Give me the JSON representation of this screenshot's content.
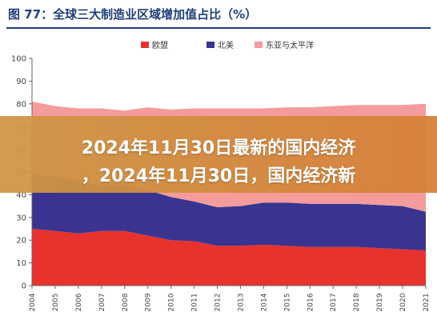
{
  "figure": {
    "title": "图 77：全球三大制造业区域增加值占比（%）"
  },
  "banner": {
    "line1": "2024年11月30日最新的国内经济",
    "line2": "，2024年11月30日，国内经济新"
  },
  "colors": {
    "title": "#1f3f7a",
    "eu": "#e8322d",
    "na": "#3a3490",
    "ea": "#f49c9c",
    "banner": "#d6883f"
  },
  "chart_data": {
    "type": "area",
    "stacked": true,
    "x": [
      "2004",
      "2005",
      "2006",
      "2007",
      "2008",
      "2009",
      "2010",
      "2011",
      "2012",
      "2013",
      "2014",
      "2015",
      "2016",
      "2017",
      "2018",
      "2019",
      "2020",
      "2021"
    ],
    "series": [
      {
        "name": "欧盟",
        "color": "#e8322d",
        "values": [
          25,
          24,
          23,
          24,
          24,
          22,
          20,
          19.5,
          17.5,
          17.5,
          18,
          17.5,
          17,
          17,
          17,
          16.5,
          16,
          15.5
        ]
      },
      {
        "name": "北美",
        "color": "#3a3490",
        "values": [
          24,
          24,
          23,
          20,
          20,
          20,
          19,
          17.5,
          17,
          17.5,
          18.5,
          19,
          19,
          19,
          19,
          19,
          19,
          17
        ]
      },
      {
        "name": "东亚与太平洋",
        "color": "#f49c9c",
        "values": [
          32,
          31,
          32,
          34,
          33,
          36.5,
          38.5,
          41,
          43.5,
          43,
          41.5,
          42,
          42.5,
          43,
          43.5,
          44,
          44.5,
          47.5
        ]
      }
    ],
    "ylim": [
      0,
      100
    ],
    "yticks": [
      0,
      10,
      20,
      30,
      40,
      50,
      60,
      70,
      80,
      90,
      100
    ],
    "legend_position": "top",
    "grid": false
  }
}
